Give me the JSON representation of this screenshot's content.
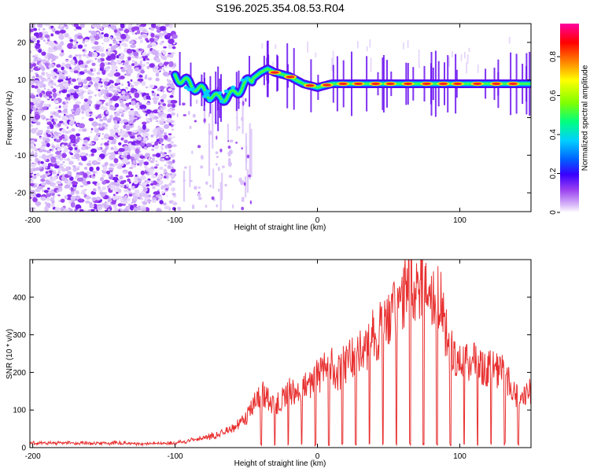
{
  "title": "S196.2025.354.08.53.R04",
  "chart_data": [
    {
      "type": "heatmap",
      "panel": "spectrogram",
      "xlabel": "Height of straight line (km)",
      "ylabel": "Frequency (Hz)",
      "xlim": [
        -202,
        150
      ],
      "ylim": [
        -25,
        25
      ],
      "xticks": [
        -200,
        -100,
        0,
        100
      ],
      "yticks": [
        -20,
        -10,
        0,
        10,
        20
      ],
      "colorbar": {
        "label": "Normalized spectral amplitude",
        "range": [
          0,
          0.97
        ],
        "ticks": [
          0,
          0.2,
          0.4,
          0.6,
          0.8
        ],
        "colormap": [
          "#ffffff",
          "#d8b8f8",
          "#9a40f0",
          "#3a00ff",
          "#0060ff",
          "#00d0ff",
          "#00ff80",
          "#80ff00",
          "#ffff00",
          "#ff8000",
          "#ff0000",
          "#ff00a0"
        ]
      },
      "ridge": {
        "x": [
          -100,
          -90,
          -80,
          -70,
          -60,
          -50,
          -40,
          -35,
          -30,
          -20,
          -10,
          0,
          10,
          20,
          30,
          40,
          50,
          60,
          70,
          80,
          90,
          100,
          110,
          120,
          130,
          140,
          150
        ],
        "y": [
          11,
          9,
          7,
          5,
          6,
          9,
          12,
          13,
          12,
          11,
          9,
          8,
          9,
          9,
          9,
          9,
          9,
          9,
          9,
          9,
          9,
          9,
          9,
          9,
          9,
          9,
          9
        ]
      }
    },
    {
      "type": "line",
      "panel": "snr",
      "xlabel": "Height of straight line (km)",
      "ylabel": "SNR (10 * v/v)",
      "xlim": [
        -202,
        150
      ],
      "ylim": [
        0,
        500
      ],
      "xticks": [
        -200,
        -100,
        0,
        100
      ],
      "yticks": [
        0,
        100,
        200,
        300,
        400
      ],
      "color": "#e83030",
      "series": [
        {
          "x": [
            -200,
            -180,
            -160,
            -140,
            -120,
            -100,
            -90,
            -80,
            -70,
            -60,
            -50,
            -45,
            -40,
            -35,
            -30,
            -25,
            -20,
            -15,
            -10,
            -5,
            0,
            5,
            10,
            15,
            20,
            25,
            30,
            35,
            40,
            45,
            50,
            55,
            60,
            65,
            70,
            75,
            80,
            85,
            90,
            95,
            100,
            105,
            110,
            115,
            120,
            125,
            130,
            135,
            140,
            145,
            150
          ],
          "y": [
            12,
            13,
            11,
            12,
            10,
            12,
            18,
            25,
            35,
            50,
            80,
            115,
            150,
            130,
            110,
            130,
            150,
            140,
            160,
            175,
            190,
            210,
            220,
            200,
            230,
            240,
            250,
            270,
            300,
            320,
            340,
            360,
            400,
            440,
            450,
            440,
            430,
            420,
            300,
            250,
            230,
            225,
            230,
            220,
            215,
            210,
            200,
            170,
            140,
            130,
            150
          ]
        }
      ]
    }
  ]
}
